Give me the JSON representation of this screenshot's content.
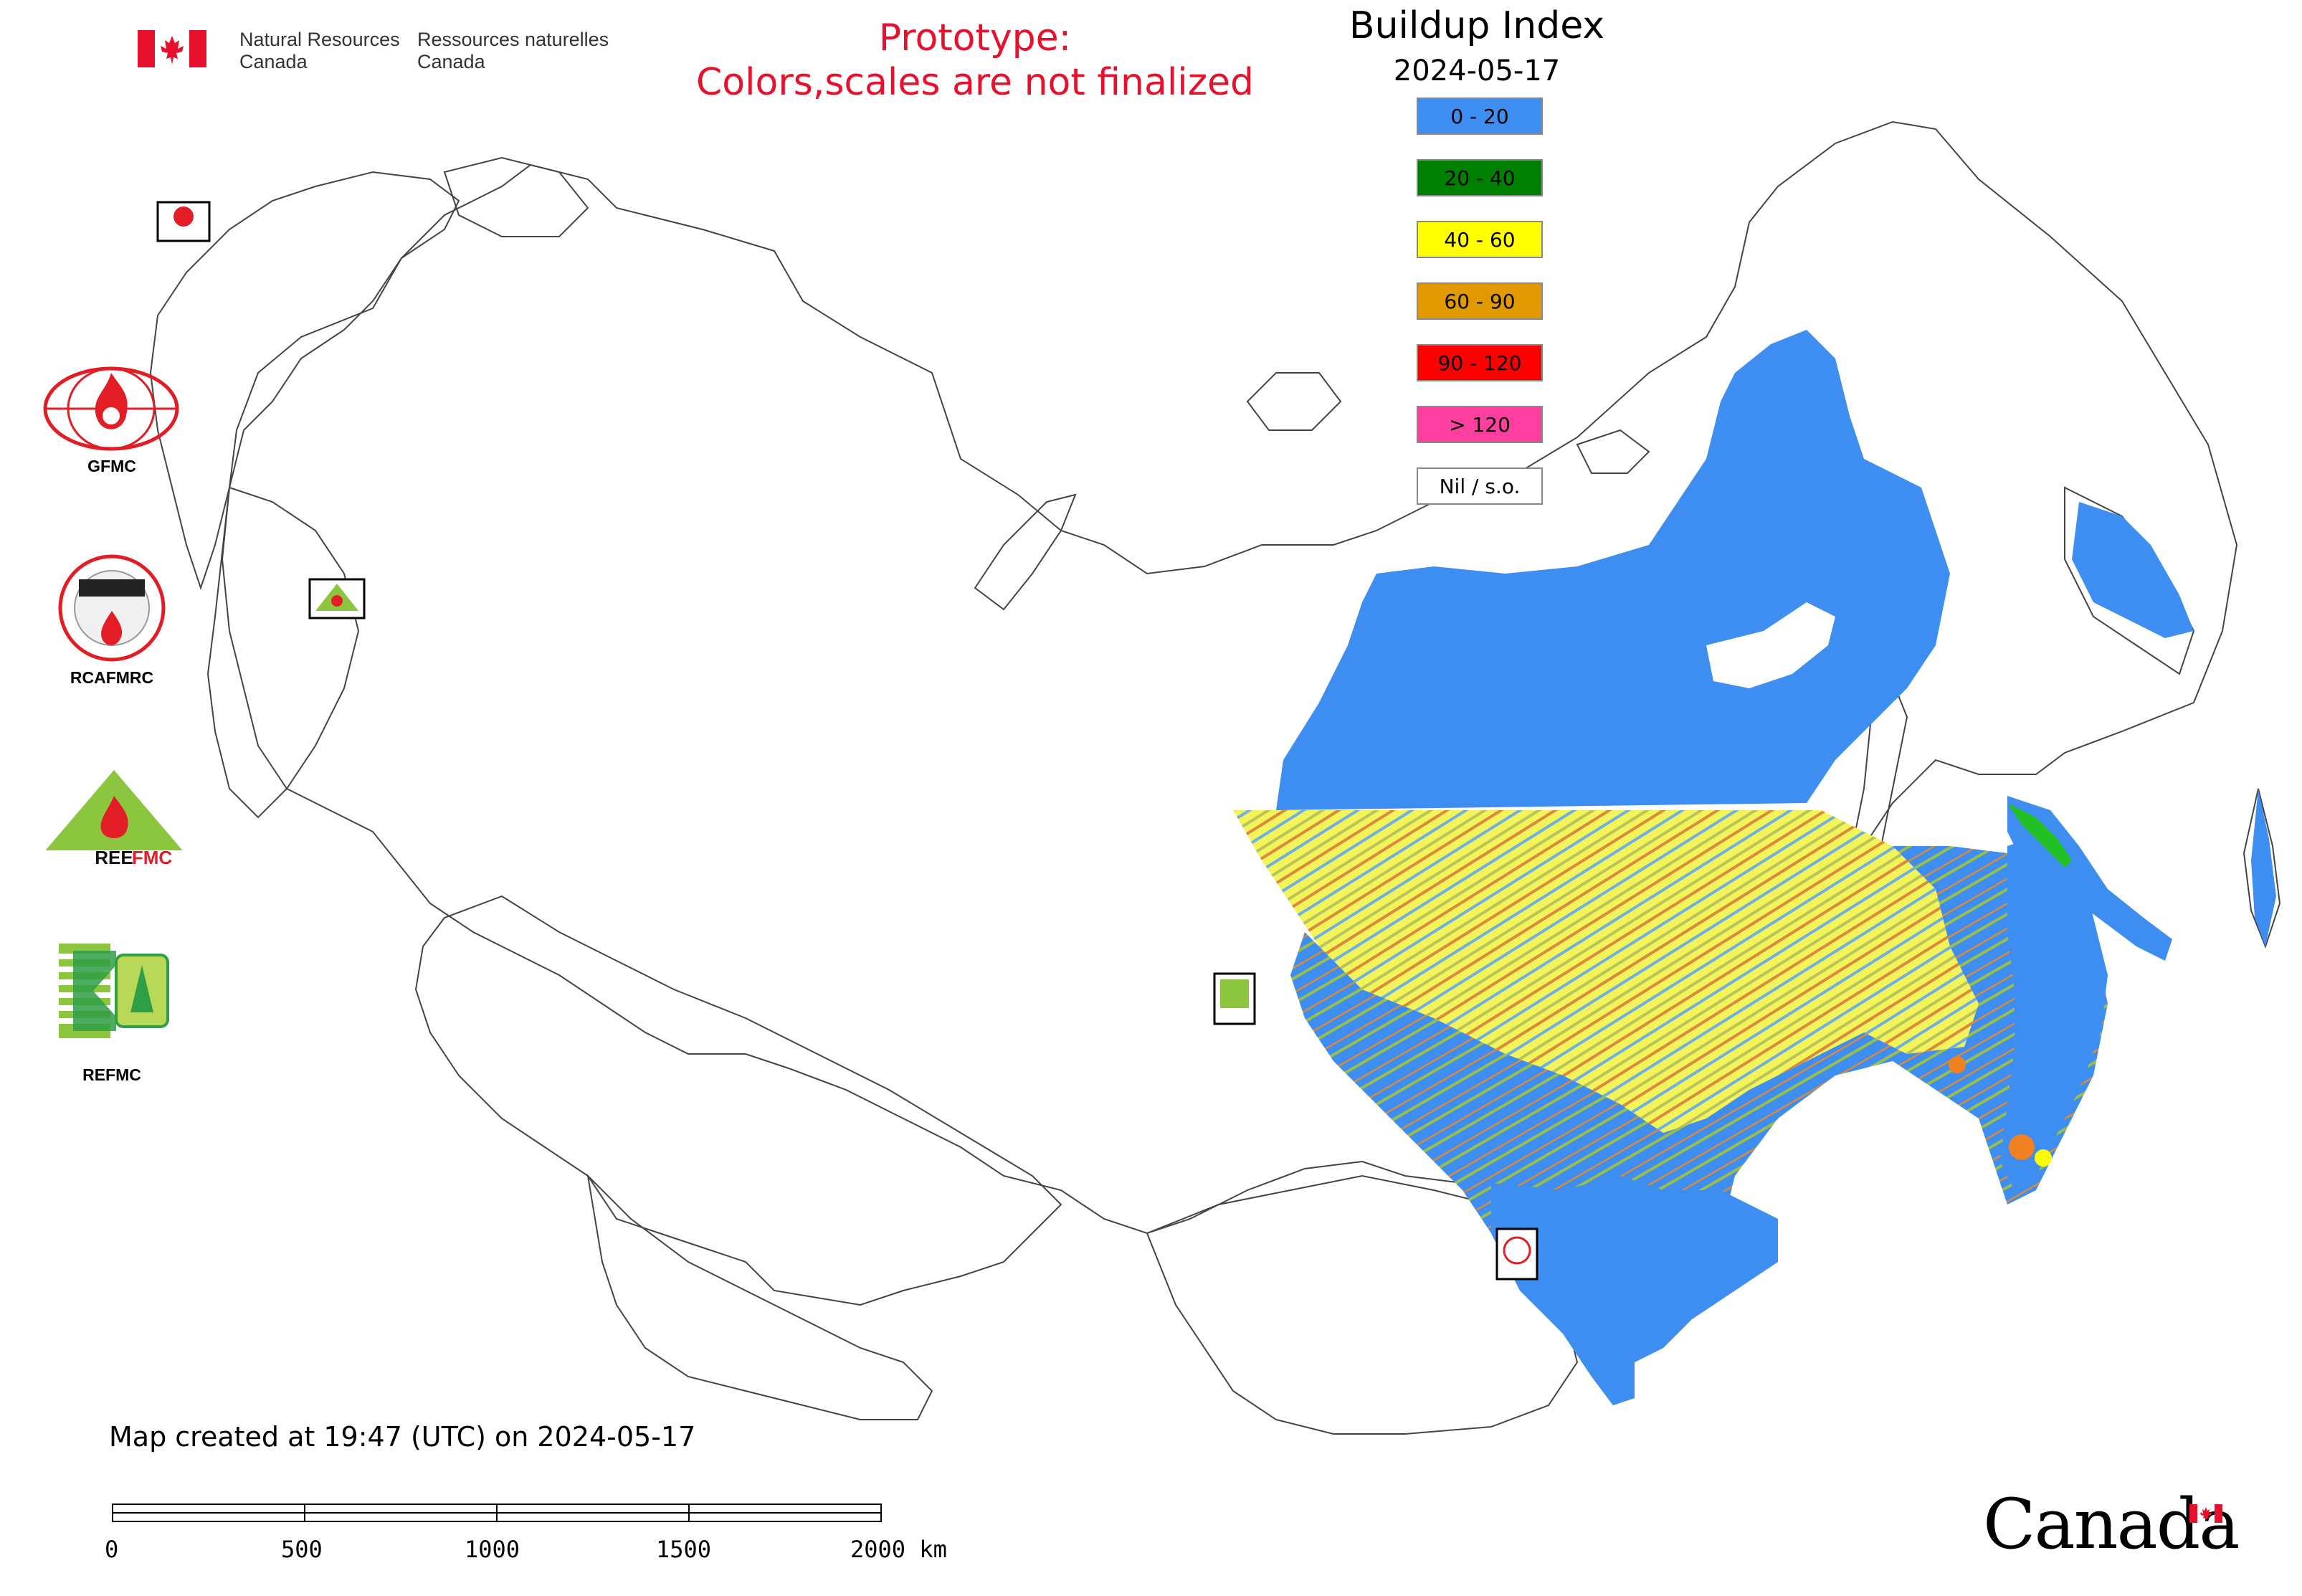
{
  "header": {
    "dept_en": [
      "Natural Resources",
      "Canada"
    ],
    "dept_fr": [
      "Ressources naturelles",
      "Canada"
    ],
    "prototype_note": [
      "Prototype:",
      "Colors,scales are not finalized"
    ]
  },
  "legend": {
    "title": "Buildup Index",
    "date": "2024-05-17",
    "classes": [
      {
        "label": "0 - 20",
        "color": "#3d8ef0"
      },
      {
        "label": "20 - 40",
        "color": "#008000"
      },
      {
        "label": "40 - 60",
        "color": "#ffff00"
      },
      {
        "label": "60 - 90",
        "color": "#e09a00"
      },
      {
        "label": "90 - 120",
        "color": "#ff0000"
      },
      {
        "label": "> 120",
        "color": "#ff3fa0"
      },
      {
        "label": "Nil / s.o.",
        "color": "#ffffff"
      }
    ]
  },
  "orgs": [
    {
      "label": "GFMC",
      "icon": "gfmc-logo-icon"
    },
    {
      "label": "RCAFMRC",
      "icon": "rcafmrc-logo-icon"
    },
    {
      "label": "",
      "icon": "reefmc-logo-icon"
    },
    {
      "label": "REFMC",
      "icon": "refmc-logo-icon"
    }
  ],
  "map_markers": [
    {
      "label": "GFMC",
      "icon": "gfmc-marker-icon"
    },
    {
      "label": "REEFMC",
      "icon": "reefmc-marker-icon"
    },
    {
      "label": "REFMC",
      "icon": "refmc-marker-icon"
    },
    {
      "label": "RCAFMRC",
      "icon": "rcafmrc-marker-icon"
    }
  ],
  "footer": {
    "created": "Map created at 19:47 (UTC) on 2024-05-17",
    "scale_ticks": [
      "0",
      "500",
      "1000",
      "1500",
      "2000 km"
    ],
    "wordmark": "Canada"
  },
  "colors": {
    "prototype_text": "#e8112d",
    "base_map_line": "#444444",
    "flag_red": "#e8112d"
  }
}
